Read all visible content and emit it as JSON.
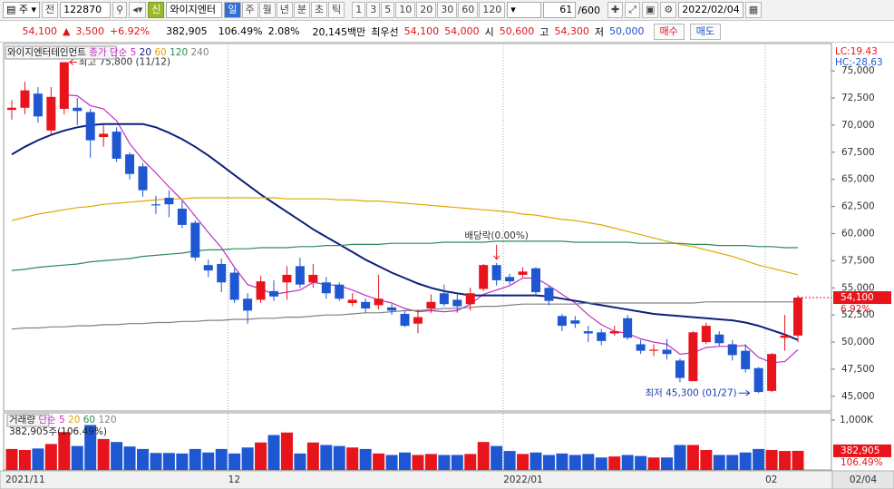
{
  "toolbar": {
    "market": "주",
    "mode": "전",
    "code": "122870",
    "badge": "신",
    "name": "와이지엔터",
    "periods": [
      "일",
      "주",
      "월",
      "년",
      "분",
      "초",
      "틱"
    ],
    "intervals": [
      "1",
      "3",
      "5",
      "10",
      "20",
      "30",
      "60",
      "120"
    ],
    "count": "61",
    "total": "/600",
    "date": "2022/02/04"
  },
  "quote": {
    "price": "54,100",
    "arrow": "▲",
    "change": "3,500",
    "rate": "+6.92%",
    "volume": "382,905",
    "volume_ratio": "106.49%",
    "turnover": "2.08%",
    "amount": "20,145백만",
    "best_label": "최우선",
    "ask": "54,100",
    "bid": "54,000",
    "open_label": "시",
    "open": "50,600",
    "high_label": "고",
    "high": "54,300",
    "low_label": "저",
    "low": "50,000",
    "buy": "매수",
    "sell": "매도"
  },
  "chart_data": [
    {
      "type": "candlestick",
      "title": "와이지엔터테인먼트",
      "ma_label": "종가 단순",
      "categories": [
        "2021/11",
        null,
        null,
        null,
        null,
        null,
        null,
        null,
        null,
        null,
        null,
        null,
        null,
        null,
        null,
        null,
        null,
        "12",
        null,
        null,
        null,
        null,
        null,
        null,
        null,
        null,
        null,
        null,
        null,
        null,
        null,
        null,
        null,
        null,
        null,
        null,
        null,
        null,
        "2022/01",
        null,
        null,
        null,
        null,
        null,
        null,
        null,
        null,
        null,
        null,
        null,
        null,
        null,
        null,
        null,
        null,
        null,
        null,
        null,
        "02",
        null,
        null
      ],
      "open": [
        71400,
        71600,
        72900,
        69500,
        71500,
        71600,
        71200,
        68900,
        69400,
        67300,
        66200,
        62700,
        63300,
        62300,
        61000,
        57100,
        57200,
        56400,
        54000,
        53900,
        54700,
        55500,
        57000,
        55500,
        55500,
        55300,
        53600,
        53700,
        53400,
        53200,
        52600,
        51700,
        53100,
        54500,
        53900,
        53500,
        54900,
        57100,
        56000,
        56200,
        56800,
        55000,
        52400,
        52000,
        51000,
        50900,
        50800,
        52200,
        49800,
        49200,
        49300,
        48300,
        46400,
        50000,
        50700,
        49800,
        49200,
        47600,
        45500,
        50400,
        50600
      ],
      "high": [
        72300,
        74000,
        73500,
        73500,
        75800,
        72500,
        71500,
        70000,
        69800,
        67500,
        66500,
        63500,
        64000,
        63000,
        61200,
        57600,
        57700,
        56800,
        54500,
        56100,
        55700,
        57000,
        57800,
        57200,
        56000,
        55500,
        54500,
        54000,
        56200,
        53500,
        52900,
        53000,
        54400,
        55300,
        54500,
        55000,
        57200,
        57300,
        56300,
        56900,
        56900,
        55200,
        52600,
        52400,
        51500,
        51200,
        51500,
        52500,
        50200,
        49800,
        50300,
        48500,
        51000,
        51800,
        51000,
        50200,
        49800,
        47700,
        49000,
        52500,
        54300
      ],
      "low": [
        70500,
        71000,
        70200,
        69000,
        71000,
        70000,
        67000,
        68000,
        66600,
        65000,
        63400,
        61800,
        61500,
        60500,
        57500,
        56000,
        54600,
        53600,
        51700,
        53600,
        53800,
        53900,
        55000,
        55000,
        54000,
        53800,
        53300,
        52700,
        53000,
        52500,
        51400,
        50800,
        52700,
        53300,
        52700,
        52900,
        54700,
        55200,
        55300,
        56000,
        54300,
        53400,
        51000,
        51300,
        50000,
        49700,
        50600,
        50200,
        48900,
        48700,
        48400,
        46300,
        46400,
        49800,
        49600,
        48300,
        47200,
        45300,
        45400,
        49200,
        50000
      ],
      "close": [
        71600,
        73200,
        70800,
        72600,
        75800,
        71300,
        68600,
        69200,
        66900,
        65500,
        64000,
        62600,
        62700,
        60800,
        57800,
        56600,
        55500,
        53900,
        52900,
        55600,
        54200,
        56200,
        55300,
        56200,
        54500,
        54000,
        53900,
        53100,
        54000,
        52900,
        51500,
        52300,
        53700,
        53500,
        53300,
        54500,
        57100,
        55700,
        55600,
        56500,
        54600,
        53800,
        51500,
        51700,
        50800,
        50100,
        51000,
        50400,
        49200,
        49300,
        48900,
        46700,
        50900,
        51500,
        49900,
        48800,
        47500,
        45400,
        48900,
        50600,
        54100
      ],
      "series": [
        {
          "name": "5",
          "color": "#c02fc0",
          "values": [
            null,
            null,
            null,
            null,
            72800,
            72700,
            71800,
            71500,
            70400,
            68300,
            66800,
            65600,
            64300,
            63100,
            61600,
            60100,
            58700,
            56900,
            55300,
            54900,
            54400,
            54600,
            54800,
            55500,
            55300,
            55200,
            54800,
            54300,
            53900,
            53600,
            53100,
            52800,
            52900,
            52800,
            52900,
            53500,
            54400,
            54800,
            55200,
            55900,
            55900,
            55200,
            54400,
            53600,
            52500,
            51600,
            51000,
            50800,
            50300,
            50000,
            49800,
            48900,
            49000,
            49500,
            49600,
            49600,
            49700,
            48600,
            48100,
            48200,
            49300
          ]
        },
        {
          "name": "20",
          "color": "#0d1f7a",
          "values": [
            67300,
            68000,
            68600,
            69100,
            69500,
            69800,
            70000,
            70100,
            70100,
            70100,
            70100,
            69800,
            69300,
            68700,
            68000,
            67200,
            66300,
            65400,
            64500,
            63600,
            62800,
            62000,
            61200,
            60400,
            59700,
            59000,
            58300,
            57600,
            57000,
            56400,
            55900,
            55400,
            55000,
            54700,
            54500,
            54300,
            54300,
            54300,
            54300,
            54300,
            54300,
            54200,
            54000,
            53800,
            53600,
            53400,
            53200,
            53000,
            52800,
            52600,
            52500,
            52400,
            52300,
            52200,
            52100,
            52000,
            51800,
            51500,
            51100,
            50700,
            50200
          ]
        },
        {
          "name": "60",
          "color": "#e0a800",
          "values": [
            61200,
            61500,
            61800,
            62000,
            62200,
            62400,
            62500,
            62700,
            62800,
            62900,
            63000,
            63100,
            63200,
            63200,
            63300,
            63300,
            63300,
            63300,
            63300,
            63300,
            63300,
            63200,
            63200,
            63200,
            63200,
            63100,
            63100,
            63000,
            63000,
            62900,
            62800,
            62700,
            62600,
            62500,
            62400,
            62300,
            62200,
            62100,
            62000,
            61800,
            61700,
            61500,
            61300,
            61200,
            61000,
            60800,
            60500,
            60200,
            59900,
            59600,
            59300,
            59000,
            58800,
            58500,
            58200,
            57900,
            57500,
            57100,
            56800,
            56500,
            56200
          ]
        },
        {
          "name": "120",
          "color": "#2e8b57",
          "values": [
            56600,
            56700,
            56900,
            57000,
            57100,
            57200,
            57400,
            57500,
            57600,
            57700,
            57900,
            58000,
            58100,
            58200,
            58400,
            58500,
            58500,
            58600,
            58600,
            58700,
            58700,
            58700,
            58800,
            58800,
            58900,
            58900,
            59000,
            59000,
            59000,
            59100,
            59100,
            59100,
            59100,
            59200,
            59200,
            59200,
            59200,
            59300,
            59300,
            59300,
            59300,
            59300,
            59300,
            59200,
            59200,
            59200,
            59200,
            59200,
            59100,
            59100,
            59100,
            59100,
            59000,
            59000,
            58900,
            58900,
            58900,
            58800,
            58800,
            58700,
            58700
          ]
        },
        {
          "name": "240",
          "color": "#808080",
          "values": [
            51200,
            51300,
            51300,
            51400,
            51400,
            51500,
            51500,
            51600,
            51600,
            51700,
            51700,
            51800,
            51800,
            51900,
            51900,
            52000,
            52000,
            52100,
            52100,
            52200,
            52200,
            52300,
            52300,
            52400,
            52500,
            52500,
            52600,
            52700,
            52700,
            52800,
            52900,
            52900,
            53000,
            53100,
            53100,
            53200,
            53300,
            53300,
            53400,
            53500,
            53500,
            53500,
            53500,
            53500,
            53600,
            53600,
            53600,
            53600,
            53600,
            53600,
            53600,
            53600,
            53600,
            53700,
            53700,
            53700,
            53700,
            53700,
            53700,
            53700,
            53700
          ]
        }
      ],
      "ylim": [
        43650,
        77350
      ],
      "yticks": [
        {
          "value": 45000,
          "label": "45,000"
        },
        {
          "value": 47500,
          "label": "47,500"
        },
        {
          "value": 50000,
          "label": "50,000"
        },
        {
          "value": 52500,
          "label": "52,500"
        },
        {
          "value": 55000,
          "label": "55,000"
        },
        {
          "value": 57500,
          "label": "57,500"
        },
        {
          "value": 60000,
          "label": "60,000"
        },
        {
          "value": 62500,
          "label": "62,500"
        },
        {
          "value": 65000,
          "label": "65,000"
        },
        {
          "value": 67500,
          "label": "67,500"
        },
        {
          "value": 70000,
          "label": "70,000"
        },
        {
          "value": 72500,
          "label": "72,500"
        },
        {
          "value": 75000,
          "label": "75,000"
        }
      ],
      "high_annotation": "최고 75,800 (11/12)",
      "low_annotation": "최저 45,300 (01/27)",
      "ex_dividend_annotation": "배당락(0.00%)",
      "lc": "LC:19.43",
      "hc": "HC:-28.63",
      "last_price": {
        "value": 54100,
        "label": "54,100"
      },
      "change_rate": "6.92%",
      "cursor_date": "02/04",
      "up_color": "#e8141b",
      "down_color": "#1f57d3"
    },
    {
      "type": "bar",
      "title": "거래량",
      "ma_label": "단순",
      "ma_names": [
        {
          "name": "5",
          "color": "#c02fc0"
        },
        {
          "name": "20",
          "color": "#e0a800"
        },
        {
          "name": "60",
          "color": "#2e8b57"
        },
        {
          "name": "120",
          "color": "#808080"
        }
      ],
      "values": [
        420000,
        400000,
        430000,
        520000,
        760000,
        480000,
        900000,
        620000,
        560000,
        470000,
        420000,
        340000,
        340000,
        330000,
        420000,
        350000,
        420000,
        330000,
        450000,
        550000,
        700000,
        750000,
        330000,
        550000,
        500000,
        480000,
        450000,
        420000,
        330000,
        300000,
        350000,
        300000,
        320000,
        300000,
        300000,
        320000,
        560000,
        480000,
        380000,
        320000,
        350000,
        300000,
        330000,
        300000,
        320000,
        250000,
        270000,
        300000,
        280000,
        250000,
        250000,
        500000,
        500000,
        400000,
        300000,
        300000,
        350000,
        420000,
        400000,
        380000,
        382905
      ],
      "ylim": [
        0,
        1127000
      ],
      "yticks": [
        {
          "value": 1000000,
          "label": "1,000K"
        }
      ],
      "summary": "382,905주(106.49%)",
      "last_label": "382,905",
      "last_ratio": "106.49%"
    }
  ]
}
